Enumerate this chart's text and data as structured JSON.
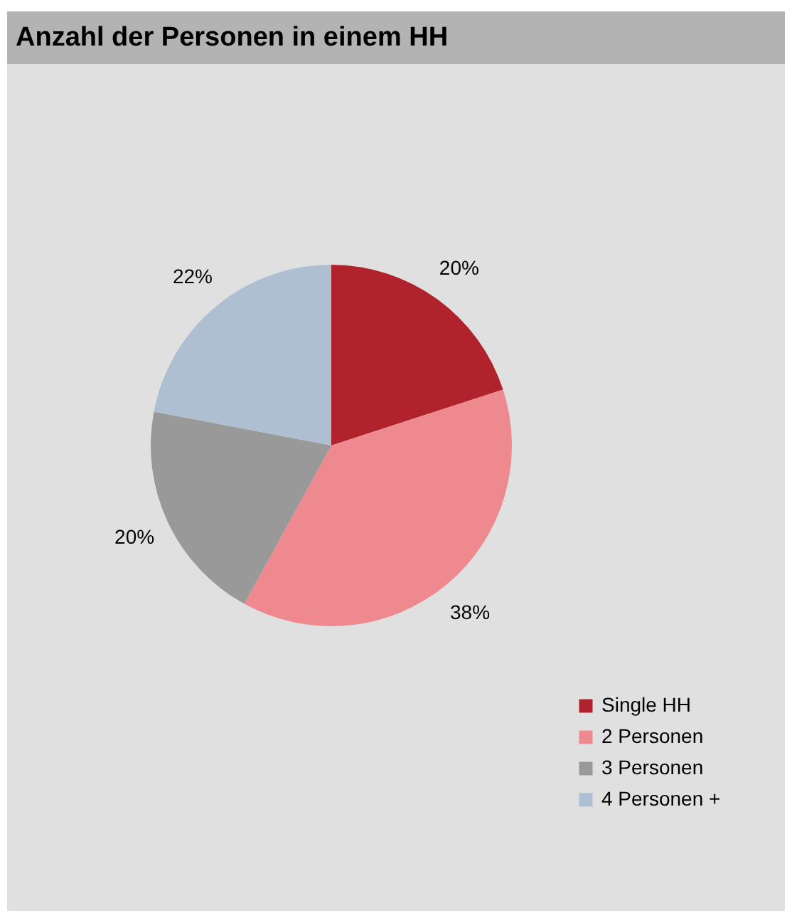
{
  "chart_data": {
    "type": "pie",
    "title": "Anzahl der Personen in einem HH",
    "categories": [
      "Single HH",
      "2 Personen",
      "3 Personen",
      "4 Personen +"
    ],
    "values": [
      20,
      38,
      20,
      22
    ],
    "colors": [
      "#b0232d",
      "#ee8a8f",
      "#999999",
      "#adbfd0"
    ],
    "value_labels": [
      "20%",
      "38%",
      "20%",
      "22%"
    ],
    "legend": "bottom right"
  }
}
